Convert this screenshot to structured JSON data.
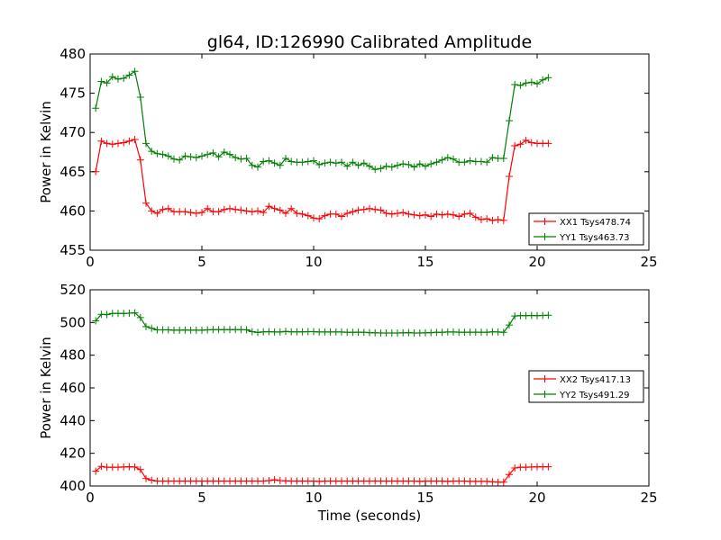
{
  "chart_data": [
    {
      "type": "line",
      "title": "gl64, ID:126990 Calibrated Amplitude",
      "xlabel": "",
      "ylabel": "Power in Kelvin",
      "xlim": [
        0,
        25
      ],
      "ylim": [
        455,
        480
      ],
      "xticks": [
        "0",
        "5",
        "10",
        "15",
        "20",
        "25"
      ],
      "yticks": [
        "455",
        "460",
        "465",
        "470",
        "475",
        "480"
      ],
      "legend_position": "lower-right",
      "grid": false,
      "x": [
        0.25,
        0.5,
        0.75,
        1.0,
        1.25,
        1.5,
        1.75,
        2.0,
        2.25,
        2.5,
        2.75,
        3.0,
        3.25,
        3.5,
        3.75,
        4.0,
        4.25,
        4.5,
        4.75,
        5.0,
        5.25,
        5.5,
        5.75,
        6.0,
        6.25,
        6.5,
        6.75,
        7.0,
        7.25,
        7.5,
        7.75,
        8.0,
        8.25,
        8.5,
        8.75,
        9.0,
        9.25,
        9.5,
        9.75,
        10.0,
        10.25,
        10.5,
        10.75,
        11.0,
        11.25,
        11.5,
        11.75,
        12.0,
        12.25,
        12.5,
        12.75,
        13.0,
        13.25,
        13.5,
        13.75,
        14.0,
        14.25,
        14.5,
        14.75,
        15.0,
        15.25,
        15.5,
        15.75,
        16.0,
        16.25,
        16.5,
        16.75,
        17.0,
        17.25,
        17.5,
        17.75,
        18.0,
        18.25,
        18.5,
        18.75,
        19.0,
        19.25,
        19.5,
        19.75,
        20.0,
        20.25,
        20.5
      ],
      "series": [
        {
          "name": "XX1 Tsys478.74",
          "color": "#ff0000",
          "values": [
            465.0,
            468.9,
            468.6,
            468.5,
            468.6,
            468.7,
            468.9,
            469.1,
            466.5,
            461.0,
            460.0,
            459.7,
            460.2,
            460.3,
            459.9,
            459.9,
            459.9,
            459.8,
            459.7,
            459.8,
            460.3,
            459.9,
            459.9,
            460.2,
            460.3,
            460.2,
            460.1,
            460.0,
            459.9,
            460.0,
            459.8,
            460.6,
            460.3,
            460.1,
            459.7,
            460.3,
            459.7,
            459.6,
            459.4,
            459.1,
            459.0,
            459.4,
            459.6,
            459.6,
            459.3,
            459.7,
            459.9,
            460.1,
            460.2,
            460.3,
            460.2,
            460.1,
            459.7,
            459.6,
            459.7,
            459.8,
            459.6,
            459.5,
            459.4,
            459.5,
            459.3,
            459.6,
            459.5,
            459.6,
            459.5,
            459.3,
            459.6,
            459.7,
            459.2,
            458.9,
            459.0,
            458.8,
            458.9,
            458.8,
            464.4,
            468.3,
            468.5,
            469.0,
            468.7,
            468.6,
            468.6,
            468.6
          ]
        },
        {
          "name": "YY1 Tsys463.73",
          "color": "#008000",
          "values": [
            473.1,
            476.5,
            476.3,
            477.1,
            476.8,
            476.9,
            477.3,
            477.8,
            474.5,
            468.6,
            467.6,
            467.3,
            467.2,
            467.0,
            466.6,
            466.5,
            467.0,
            466.9,
            466.8,
            467.0,
            467.2,
            467.4,
            466.9,
            467.5,
            467.2,
            466.8,
            466.6,
            466.7,
            465.8,
            465.6,
            466.3,
            466.4,
            466.1,
            465.8,
            466.7,
            466.3,
            466.2,
            466.2,
            466.3,
            466.4,
            465.9,
            466.1,
            466.2,
            466.1,
            466.2,
            465.7,
            466.2,
            465.8,
            466.1,
            465.7,
            465.3,
            465.4,
            465.7,
            465.6,
            465.8,
            466.0,
            465.9,
            465.6,
            466.0,
            465.7,
            466.0,
            466.2,
            466.5,
            466.8,
            466.6,
            466.2,
            466.2,
            466.4,
            466.3,
            466.3,
            466.2,
            466.8,
            466.7,
            466.7,
            471.5,
            476.1,
            476.0,
            476.3,
            476.4,
            476.2,
            476.7,
            477.0
          ]
        }
      ]
    },
    {
      "type": "line",
      "title": "",
      "xlabel": "Time (seconds)",
      "ylabel": "Power in Kelvin",
      "xlim": [
        0,
        25
      ],
      "ylim": [
        400,
        520
      ],
      "xticks": [
        "0",
        "5",
        "10",
        "15",
        "20",
        "25"
      ],
      "yticks": [
        "400",
        "420",
        "440",
        "460",
        "480",
        "500",
        "520"
      ],
      "legend_position": "center-right",
      "grid": false,
      "x": [
        0.25,
        0.5,
        0.75,
        1.0,
        1.25,
        1.5,
        1.75,
        2.0,
        2.25,
        2.5,
        2.75,
        3.0,
        3.25,
        3.5,
        3.75,
        4.0,
        4.25,
        4.5,
        4.75,
        5.0,
        5.25,
        5.5,
        5.75,
        6.0,
        6.25,
        6.5,
        6.75,
        7.0,
        7.25,
        7.5,
        7.75,
        8.0,
        8.25,
        8.5,
        8.75,
        9.0,
        9.25,
        9.5,
        9.75,
        10.0,
        10.25,
        10.5,
        10.75,
        11.0,
        11.25,
        11.5,
        11.75,
        12.0,
        12.25,
        12.5,
        12.75,
        13.0,
        13.25,
        13.5,
        13.75,
        14.0,
        14.25,
        14.5,
        14.75,
        15.0,
        15.25,
        15.5,
        15.75,
        16.0,
        16.25,
        16.5,
        16.75,
        17.0,
        17.25,
        17.5,
        17.75,
        18.0,
        18.25,
        18.5,
        18.75,
        19.0,
        19.25,
        19.5,
        19.75,
        20.0,
        20.25,
        20.5
      ],
      "series": [
        {
          "name": "XX2 Tsys417.13",
          "color": "#ff0000",
          "values": [
            409.0,
            412.0,
            411.5,
            411.5,
            411.5,
            411.6,
            411.8,
            411.6,
            410.0,
            404.5,
            403.5,
            403.0,
            403.0,
            403.0,
            403.0,
            403.0,
            403.0,
            403.0,
            403.0,
            403.0,
            403.0,
            403.0,
            403.0,
            403.0,
            403.0,
            403.0,
            403.0,
            403.0,
            403.0,
            403.0,
            403.0,
            403.3,
            403.8,
            403.3,
            403.2,
            403.0,
            403.0,
            403.0,
            403.0,
            403.0,
            402.8,
            403.0,
            403.0,
            403.0,
            403.0,
            403.0,
            403.0,
            403.0,
            403.0,
            403.0,
            403.0,
            403.0,
            403.0,
            403.0,
            403.0,
            403.0,
            403.0,
            403.0,
            402.8,
            403.0,
            403.0,
            403.0,
            403.0,
            402.8,
            403.0,
            403.0,
            403.0,
            402.8,
            402.8,
            402.8,
            402.8,
            402.6,
            402.3,
            402.3,
            407.0,
            411.0,
            411.5,
            411.5,
            411.6,
            411.7,
            411.8,
            411.8
          ]
        },
        {
          "name": "YY2 Tsys491.29",
          "color": "#008000",
          "values": [
            501.0,
            505.0,
            504.8,
            505.6,
            505.6,
            505.5,
            505.7,
            505.9,
            503.0,
            497.5,
            496.5,
            495.5,
            495.5,
            495.5,
            495.3,
            495.3,
            495.4,
            495.3,
            495.3,
            495.3,
            495.5,
            495.6,
            495.6,
            495.6,
            495.6,
            495.6,
            495.6,
            495.5,
            494.4,
            493.9,
            494.3,
            494.4,
            494.2,
            494.2,
            494.5,
            494.3,
            494.3,
            494.3,
            494.4,
            494.4,
            494.2,
            494.2,
            494.2,
            494.2,
            494.2,
            494.0,
            494.0,
            494.1,
            494.0,
            493.8,
            493.7,
            493.6,
            493.6,
            493.6,
            493.6,
            493.7,
            493.8,
            493.6,
            493.6,
            493.7,
            493.8,
            494.0,
            494.0,
            494.2,
            494.2,
            494.1,
            494.1,
            494.1,
            494.1,
            494.1,
            494.0,
            494.3,
            494.2,
            494.0,
            498.5,
            504.0,
            504.2,
            504.2,
            504.3,
            504.2,
            504.3,
            504.5
          ]
        }
      ]
    }
  ]
}
